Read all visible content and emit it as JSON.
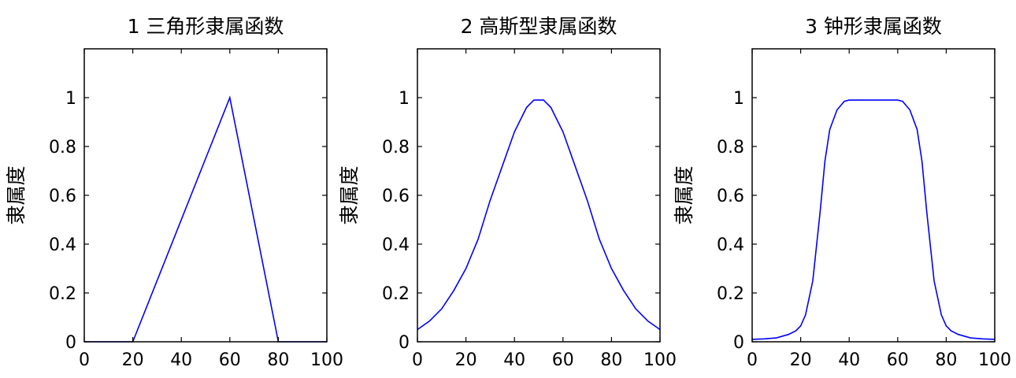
{
  "chart_data": [
    {
      "type": "line",
      "title": "1 三角形隶属函数",
      "xlabel": "",
      "ylabel": "隶属度",
      "xlim": [
        0,
        100
      ],
      "ylim": [
        0,
        1.2
      ],
      "xticks": [
        0,
        20,
        40,
        60,
        80,
        100
      ],
      "yticks": [
        0,
        0.2,
        0.4,
        0.6,
        0.8,
        1
      ],
      "grid": false,
      "color": "#0000ff",
      "series": [
        {
          "x": [
            0,
            20,
            60,
            80,
            100
          ],
          "y": [
            0,
            0,
            1,
            0,
            0
          ]
        }
      ]
    },
    {
      "type": "line",
      "title": "2 高斯型隶属函数",
      "xlabel": "",
      "ylabel": "隶属度",
      "xlim": [
        0,
        100
      ],
      "ylim": [
        0,
        1.2
      ],
      "xticks": [
        0,
        20,
        40,
        60,
        80,
        100
      ],
      "yticks": [
        0,
        0.2,
        0.4,
        0.6,
        0.8,
        1
      ],
      "grid": false,
      "color": "#0000ff",
      "series": [
        {
          "x": [
            0,
            5,
            10,
            15,
            20,
            25,
            30,
            35,
            40,
            45,
            48,
            50,
            52,
            55,
            60,
            65,
            70,
            75,
            80,
            85,
            90,
            95,
            100
          ],
          "y": [
            0.05,
            0.085,
            0.135,
            0.21,
            0.3,
            0.42,
            0.58,
            0.72,
            0.86,
            0.96,
            0.99,
            0.99,
            0.99,
            0.96,
            0.86,
            0.72,
            0.58,
            0.42,
            0.3,
            0.21,
            0.135,
            0.085,
            0.05
          ]
        }
      ]
    },
    {
      "type": "line",
      "title": "3 钟形隶属函数",
      "xlabel": "",
      "ylabel": "隶属度",
      "xlim": [
        0,
        100
      ],
      "ylim": [
        0,
        1.2
      ],
      "xticks": [
        0,
        20,
        40,
        60,
        80,
        100
      ],
      "yticks": [
        0,
        0.2,
        0.4,
        0.6,
        0.8,
        1
      ],
      "grid": false,
      "color": "#0000ff",
      "series": [
        {
          "x": [
            0,
            5,
            10,
            15,
            18,
            20,
            22,
            25,
            28,
            30,
            32,
            35,
            38,
            40,
            45,
            50,
            55,
            60,
            62,
            65,
            68,
            70,
            72,
            75,
            78,
            80,
            82,
            85,
            90,
            95,
            100
          ],
          "y": [
            0.01,
            0.012,
            0.016,
            0.03,
            0.045,
            0.065,
            0.11,
            0.25,
            0.53,
            0.74,
            0.87,
            0.95,
            0.985,
            0.99,
            0.99,
            0.99,
            0.99,
            0.99,
            0.985,
            0.95,
            0.87,
            0.74,
            0.53,
            0.25,
            0.11,
            0.065,
            0.045,
            0.03,
            0.016,
            0.012,
            0.01
          ]
        }
      ]
    }
  ]
}
